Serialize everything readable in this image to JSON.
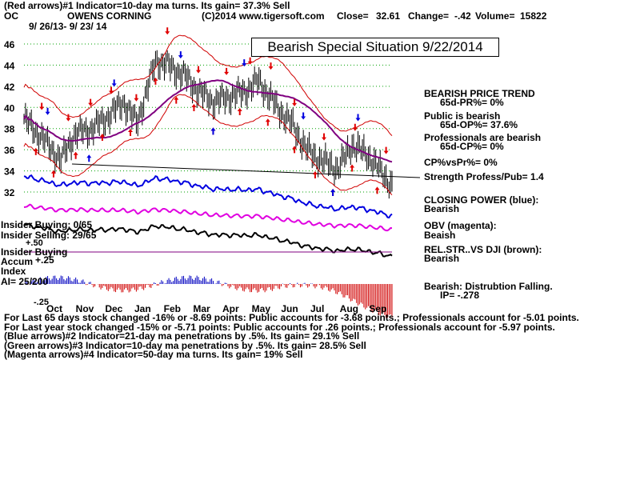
{
  "header": {
    "line1": "(Red arrows)#1 Indicator=10-day ma turns. Its gain= 37.3% Sell",
    "ticker": "OC",
    "company": "OWENS CORNING",
    "copyright": "(C)2014 www.tigersoft.com",
    "close_label": "Close=",
    "close_value": "32.61",
    "change_label": "Change=",
    "change_value": "-.42",
    "volume_label": "Volume=",
    "volume_value": "15822",
    "date_range": "9/ 26/13- 9/ 23/ 14"
  },
  "banner": "Bearish Special Situation 9/22/2014",
  "left_labels": {
    "insider_buying": "Insider Buying: 0/65",
    "insider_selling": "Insider Selling: 29/65",
    "plus50": "+.50",
    "insider_buying2": "Insider Buying",
    "accum": "Accum",
    "plus25": "+.25",
    "index": "Index",
    "ai": "AI= 25/200",
    "minus25": "-.25"
  },
  "side_panel": [
    {
      "text": "BEARISH PRICE TREND",
      "indent": false
    },
    {
      "text": "65d-PR%= 0%",
      "indent": true
    },
    {
      "text": "Public is bearish",
      "indent": false
    },
    {
      "text": "65d-OP%= 37.6%",
      "indent": true
    },
    {
      "text": "Professionals are bearish",
      "indent": false
    },
    {
      "text": "65d-CP%= 0%",
      "indent": true
    },
    {
      "text": "CP%vsPr%= 0%",
      "indent": false
    },
    {
      "text": "Strength Profess/Pub= 1.4",
      "indent": false
    },
    {
      "text": "CLOSING POWER (blue):",
      "indent": false
    },
    {
      "text": "Bearish",
      "indent": false
    },
    {
      "text": "OBV (magenta):",
      "indent": false
    },
    {
      "text": "Beaish",
      "indent": false
    },
    {
      "text": "REL.STR..VS DJI (brown):",
      "indent": false
    },
    {
      "text": "Bearish",
      "indent": false
    },
    {
      "text": "Bearish: Distrubtion Falling.",
      "indent": false
    },
    {
      "text": "IP= -.278",
      "indent": true
    }
  ],
  "footer": [
    "For Last 65 days stock changed -16% or -8.69 points:  Public accounts for -3.68 points.;  Professionals account for -5.01 points.",
    "For Last year stock changed -15% or -5.71 points:  Public accounts for  .26 points.;  Professionals account for -5.97 points.",
    "(Blue arrows)#2 Indicator=21-day ma penetrations by .5%. Its gain= 29.1% Sell",
    "(Green arrows)#3 Indicator=10-day ma penetrations by .5%. Its gain= 28.5% Sell",
    "(Magenta arrows)#4 Indicator=50-day ma turns. Its gain= 19% Sell"
  ],
  "colors": {
    "price": "#000000",
    "band": "#d00000",
    "ma50": "#800080",
    "closing_power": "#0000e0",
    "obv": "#e000e0",
    "rel_str": "#000000",
    "grid": "#00a000",
    "accum_pos": "#0000c0",
    "accum_neg": "#d00000",
    "red_arrow": "#e00000",
    "blue_arrow": "#0000e0"
  },
  "chart_data": {
    "type": "line",
    "title": "OWENS CORNING",
    "xlabel": "",
    "ylabel": "",
    "x": [
      "2013-09-26",
      "2013-10-15",
      "2013-11-01",
      "2013-11-15",
      "2013-12-02",
      "2013-12-16",
      "2014-01-02",
      "2014-01-15",
      "2014-02-03",
      "2014-02-14",
      "2014-03-03",
      "2014-03-17",
      "2014-04-01",
      "2014-04-15",
      "2014-05-01",
      "2014-05-15",
      "2014-06-02",
      "2014-06-16",
      "2014-07-01",
      "2014-07-15",
      "2014-08-01",
      "2014-08-15",
      "2014-09-02",
      "2014-09-15",
      "2014-09-23"
    ],
    "x_tick_labels": [
      "Oct",
      "Nov",
      "Dec",
      "Jan",
      "Feb",
      "Mar",
      "Apr",
      "May",
      "Jun",
      "Jul",
      "Aug",
      "Sep"
    ],
    "y_ticks": [
      32,
      34,
      36,
      38,
      40,
      42,
      44,
      46
    ],
    "ylim": [
      31.5,
      47
    ],
    "grid": true,
    "series": [
      {
        "name": "",
        "values": [
          38.9,
          37.0,
          35.0,
          37.5,
          38.0,
          39.0,
          40.5,
          38.5,
          44.5,
          44.0,
          43.0,
          41.5,
          40.5,
          41.0,
          41.5,
          42.5,
          40.0,
          38.5,
          36.0,
          35.0,
          34.2,
          36.5,
          35.2,
          33.6,
          32.61
        ]
      }
    ],
    "arrows": {
      "red_down": 14,
      "red_up": 16,
      "blue_down": 6,
      "blue_up": 3
    }
  }
}
